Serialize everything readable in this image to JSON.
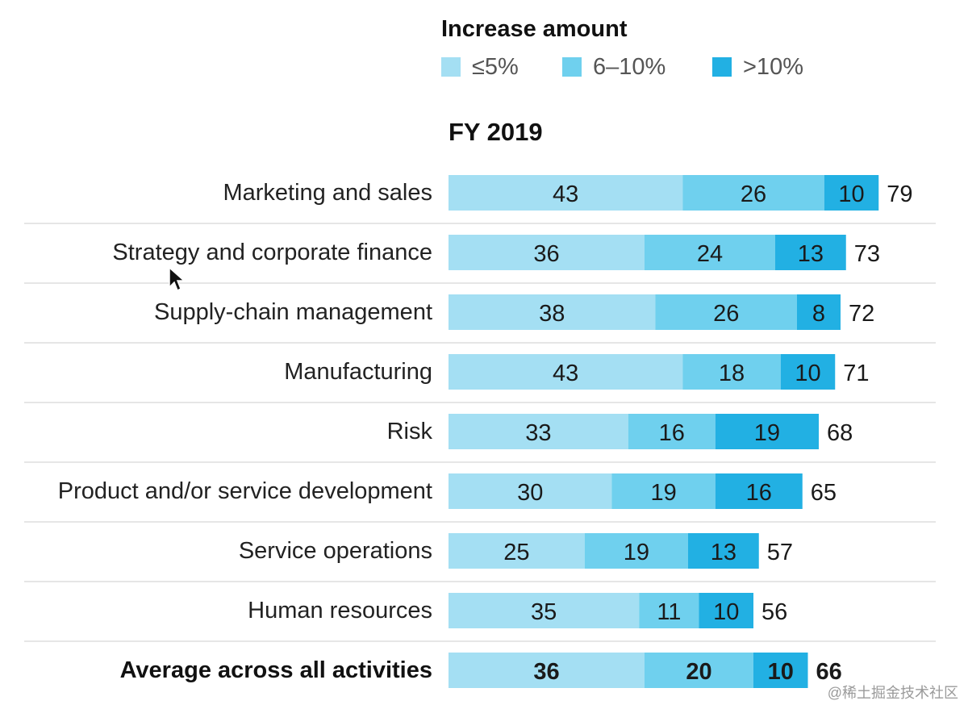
{
  "legend": {
    "title": "Increase amount",
    "items": [
      {
        "label": "≤5%",
        "color": "#a4dff3"
      },
      {
        "label": "6–10%",
        "color": "#6fd0ee"
      },
      {
        "label": ">10%",
        "color": "#22b0e3"
      }
    ]
  },
  "period": "FY 2019",
  "chart_data": {
    "type": "bar",
    "orientation": "horizontal",
    "stacked": true,
    "title": "FY 2019",
    "categories": [
      "Marketing and sales",
      "Strategy and corporate finance",
      "Supply-chain management",
      "Manufacturing",
      "Risk",
      "Product and/or service development",
      "Service operations",
      "Human resources",
      "Average across all activities"
    ],
    "series": [
      {
        "name": "≤5%",
        "color": "#a4dff3",
        "values": [
          43,
          36,
          38,
          43,
          33,
          30,
          25,
          35,
          36
        ]
      },
      {
        "name": "6–10%",
        "color": "#6fd0ee",
        "values": [
          26,
          24,
          26,
          18,
          16,
          19,
          19,
          11,
          20
        ]
      },
      {
        "name": ">10%",
        "color": "#22b0e3",
        "values": [
          10,
          13,
          8,
          10,
          19,
          16,
          13,
          10,
          10
        ]
      }
    ],
    "totals": [
      79,
      73,
      72,
      71,
      68,
      65,
      57,
      56,
      66
    ],
    "bold_rows": [
      8
    ],
    "xlabel": "",
    "ylabel": "",
    "legend_position": "top"
  },
  "watermark": "@稀土掘金技术社区"
}
